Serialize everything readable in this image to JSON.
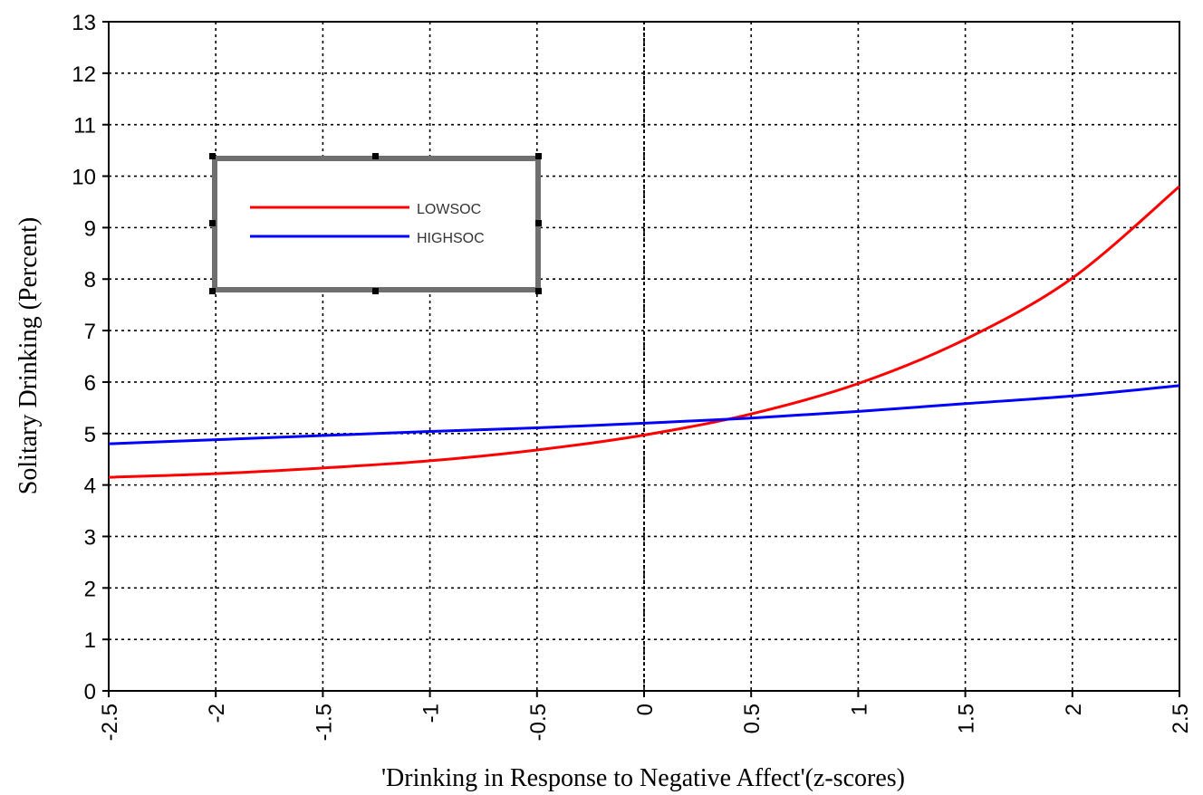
{
  "chart_data": {
    "type": "line",
    "title": "",
    "xlabel": "'Drinking in Response to Negative Affect'(z-scores)",
    "ylabel": "Solitary Drinking (Percent)",
    "xlim": [
      -2.5,
      2.5
    ],
    "ylim": [
      0,
      13
    ],
    "x_ticks": [
      "-2.5",
      "-2",
      "-1.5",
      "-1",
      "-0.5",
      "0",
      "0.5",
      "1",
      "1.5",
      "2",
      "2.5"
    ],
    "y_ticks": [
      "0",
      "1",
      "2",
      "3",
      "4",
      "5",
      "6",
      "7",
      "8",
      "9",
      "10",
      "11",
      "12",
      "13"
    ],
    "grid": true,
    "grid_style": "dotted",
    "legend_position": "top-left",
    "series": [
      {
        "name": "LOWSOC",
        "color": "#ff0000",
        "x": [
          -2.5,
          -2.0,
          -1.5,
          -1.0,
          -0.5,
          0.0,
          0.5,
          1.0,
          1.5,
          2.0,
          2.5
        ],
        "values": [
          4.15,
          4.22,
          4.33,
          4.47,
          4.68,
          4.97,
          5.38,
          5.97,
          6.83,
          8.02,
          9.8
        ]
      },
      {
        "name": "HIGHSOC",
        "color": "#0000ff",
        "x": [
          -2.5,
          -2.0,
          -1.5,
          -1.0,
          -0.5,
          0.0,
          0.5,
          1.0,
          1.5,
          2.0,
          2.5
        ],
        "values": [
          4.8,
          4.88,
          4.96,
          5.04,
          5.11,
          5.2,
          5.3,
          5.43,
          5.58,
          5.73,
          5.93
        ]
      }
    ]
  }
}
